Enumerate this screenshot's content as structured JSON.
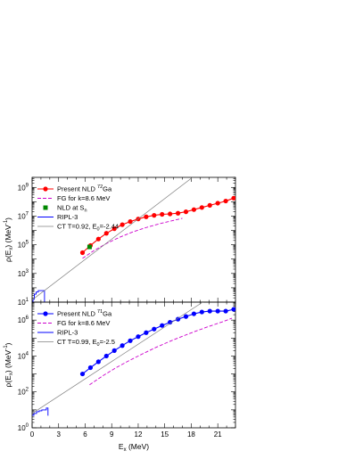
{
  "chart_data": [
    {
      "type": "line",
      "panel": "top",
      "xlabel": "",
      "ylabel": "ρ(Ex) (MeV⁻¹)",
      "ylabel_parts": {
        "rho": "ρ(E",
        "sub": "x",
        "unit": ") (MeV",
        "sup": "-1",
        "end": ")"
      },
      "xlim": [
        0,
        23
      ],
      "ylim_log10": [
        1,
        9.7
      ],
      "y_scale": "log",
      "x_ticks": [
        0,
        3,
        6,
        9,
        12,
        15,
        18,
        21
      ],
      "y_ticks": [
        {
          "base": "10",
          "exp": "1",
          "log": 1
        },
        {
          "base": "10",
          "exp": "3",
          "log": 3
        },
        {
          "base": "10",
          "exp": "5",
          "log": 5
        },
        {
          "base": "10",
          "exp": "7",
          "log": 7
        },
        {
          "base": "10",
          "exp": "9",
          "log": 9
        }
      ],
      "legend": {
        "position": "top-left",
        "entries": [
          {
            "label": "Present NLD ",
            "sup": "72",
            "label_end": "Ga",
            "style": "red-dots"
          },
          {
            "label": "FG for k=8.6 MeV",
            "style": "magenta-dash"
          },
          {
            "label": "NLD at S",
            "sub": "n",
            "style": "green-square"
          },
          {
            "label": "RIPL-3",
            "style": "blue-line"
          },
          {
            "label": "CT T=0.92, E",
            "sub": "0",
            "label_end": "=-2.44",
            "style": "gray-line"
          }
        ]
      },
      "series": [
        {
          "name": "Present NLD 72Ga",
          "color": "#ff0000",
          "x": [
            5.7,
            6.6,
            7.5,
            8.4,
            9.3,
            10.2,
            11.1,
            12.0,
            12.9,
            13.8,
            14.7,
            15.6,
            16.5,
            17.4,
            18.3,
            19.2,
            20.1,
            21.0,
            21.9,
            22.8
          ],
          "log_y": [
            4.45,
            4.95,
            5.4,
            5.8,
            6.12,
            6.4,
            6.62,
            6.8,
            6.95,
            7.05,
            7.12,
            7.15,
            7.2,
            7.3,
            7.45,
            7.6,
            7.75,
            7.9,
            8.05,
            8.25
          ]
        },
        {
          "name": "FG for k=8.6 MeV",
          "color": "#cc00cc",
          "x": [
            5.7,
            7.0,
            8.5,
            10.0,
            11.5,
            13.0,
            14.5,
            16.0,
            17.0
          ],
          "log_y": [
            4.05,
            4.6,
            5.12,
            5.55,
            5.92,
            6.22,
            6.48,
            6.7,
            6.85
          ]
        },
        {
          "name": "NLD at Sn",
          "color": "#008800",
          "x": [
            6.5
          ],
          "log_y": [
            4.85
          ]
        },
        {
          "name": "RIPL-3",
          "color": "#0000ff",
          "x": [
            0.0,
            0.1,
            0.1,
            0.25,
            0.25,
            0.45,
            0.45,
            0.7,
            0.7,
            1.0,
            1.0,
            1.4,
            1.4,
            1.45
          ],
          "log_y": [
            1.0,
            1.0,
            1.2,
            1.2,
            1.55,
            1.55,
            1.7,
            1.7,
            1.8,
            1.8,
            1.8,
            1.8,
            1.0,
            1.0
          ]
        },
        {
          "name": "CT T=0.92, E0=-2.44",
          "color": "#808080",
          "x": [
            0.0,
            18.25
          ],
          "log_y": [
            1.15,
            9.75
          ]
        }
      ]
    },
    {
      "type": "line",
      "panel": "bottom",
      "xlabel": "Ex (MeV)",
      "xlabel_parts": {
        "main": "E",
        "sub": "x",
        "end": " (MeV)"
      },
      "ylabel": "ρ(Ex) (MeV⁻¹)",
      "ylabel_parts": {
        "rho": "ρ(E",
        "sub": "x",
        "unit": ") (MeV",
        "sup": "-1",
        "end": ")"
      },
      "xlim": [
        0,
        23
      ],
      "ylim_log10": [
        0,
        7
      ],
      "y_scale": "log",
      "x_ticks": [
        0,
        3,
        6,
        9,
        12,
        15,
        18,
        21
      ],
      "y_ticks": [
        {
          "base": "10",
          "exp": "0",
          "log": 0
        },
        {
          "base": "10",
          "exp": "2",
          "log": 2
        },
        {
          "base": "10",
          "exp": "4",
          "log": 4
        },
        {
          "base": "10",
          "exp": "6",
          "log": 6
        }
      ],
      "legend": {
        "position": "top-left",
        "entries": [
          {
            "label": "Present NLD ",
            "sup": "71",
            "label_end": "Ga",
            "style": "blue-dots"
          },
          {
            "label": "FG for k=8.6 MeV",
            "style": "magenta-dash"
          },
          {
            "label": "RIPL-3",
            "style": "blue-line"
          },
          {
            "label": "CT T=0.99, E",
            "sub": "0",
            "label_end": "=-2.5",
            "style": "gray-line"
          }
        ]
      },
      "series": [
        {
          "name": "Present NLD 71Ga",
          "color": "#0000ff",
          "x": [
            5.7,
            6.6,
            7.5,
            8.4,
            9.3,
            10.2,
            11.1,
            12.0,
            12.9,
            13.8,
            14.7,
            15.6,
            16.5,
            17.4,
            18.3,
            19.2,
            20.1,
            21.0,
            21.9,
            22.8
          ],
          "log_y": [
            3.0,
            3.35,
            3.68,
            4.0,
            4.3,
            4.58,
            4.85,
            5.08,
            5.3,
            5.5,
            5.7,
            5.88,
            6.05,
            6.2,
            6.35,
            6.45,
            6.5,
            6.5,
            6.5,
            6.6
          ]
        },
        {
          "name": "FG for k=8.6 MeV",
          "color": "#cc00cc",
          "x": [
            6.5,
            8.0,
            9.5,
            11.0,
            12.5,
            14.0,
            15.5,
            17.0,
            18.5,
            20.0,
            21.5,
            22.6
          ],
          "log_y": [
            2.4,
            2.9,
            3.35,
            3.75,
            4.12,
            4.48,
            4.8,
            5.1,
            5.38,
            5.65,
            5.9,
            6.1
          ]
        },
        {
          "name": "RIPL-3",
          "color": "#0000ff",
          "x": [
            0.0,
            0.2,
            0.2,
            0.5,
            0.5,
            0.8,
            0.8,
            1.1,
            1.1,
            1.6,
            1.6,
            1.8,
            1.8,
            1.85
          ],
          "log_y": [
            0.7,
            0.7,
            0.8,
            0.8,
            0.9,
            0.9,
            0.95,
            0.95,
            1.0,
            1.0,
            1.1,
            1.1,
            0.7,
            0.7
          ]
        },
        {
          "name": "CT T=0.99, E0=-2.5",
          "color": "#808080",
          "x": [
            0.0,
            19.3
          ],
          "log_y": [
            0.8,
            7.0
          ]
        }
      ]
    }
  ]
}
